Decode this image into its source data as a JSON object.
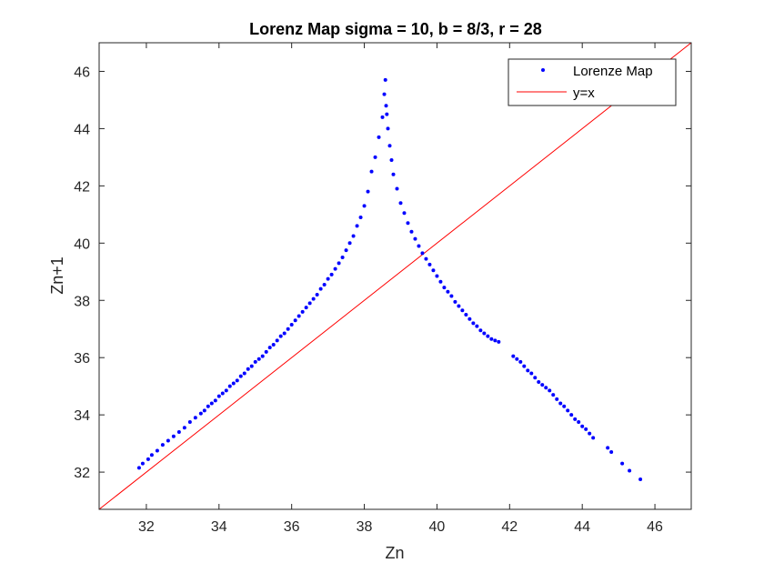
{
  "chart_data": {
    "type": "scatter",
    "title": "Lorenz Map sigma = 10, b = 8/3, r = 28",
    "xlabel": "Zn",
    "ylabel": "Zn+1",
    "xlim": [
      30.7,
      47.0
    ],
    "ylim": [
      30.7,
      47.0
    ],
    "xticks": [
      "32",
      "34",
      "36",
      "38",
      "40",
      "42",
      "44",
      "46"
    ],
    "yticks": [
      "32",
      "34",
      "36",
      "38",
      "40",
      "42",
      "44",
      "46"
    ],
    "grid": false,
    "legend_position": "top-right",
    "series": [
      {
        "name": "Lorenze Map",
        "color": "#0000ff",
        "marker": "dot",
        "x": [
          31.8,
          31.9,
          32.05,
          32.15,
          32.3,
          32.45,
          32.6,
          32.75,
          32.9,
          33.05,
          33.2,
          33.35,
          33.5,
          33.6,
          33.7,
          33.8,
          33.9,
          34.0,
          34.1,
          34.2,
          34.3,
          34.4,
          34.5,
          34.6,
          34.7,
          34.8,
          34.9,
          35.0,
          35.1,
          35.2,
          35.3,
          35.4,
          35.5,
          35.6,
          35.7,
          35.8,
          35.9,
          36.0,
          36.1,
          36.2,
          36.3,
          36.4,
          36.5,
          36.6,
          36.7,
          36.8,
          36.9,
          37.0,
          37.1,
          37.2,
          37.3,
          37.4,
          37.5,
          37.6,
          37.7,
          37.8,
          37.9,
          38.0,
          38.1,
          38.2,
          38.3,
          38.4,
          38.5,
          38.55,
          38.58,
          38.6,
          38.62,
          38.65,
          38.7,
          38.75,
          38.8,
          38.9,
          39.0,
          39.1,
          39.2,
          39.3,
          39.4,
          39.5,
          39.6,
          39.7,
          39.8,
          39.9,
          40.0,
          40.1,
          40.2,
          40.3,
          40.4,
          40.5,
          40.6,
          40.7,
          40.8,
          40.9,
          41.0,
          41.1,
          41.2,
          41.3,
          41.4,
          41.5,
          41.6,
          41.7,
          42.1,
          42.2,
          42.3,
          42.4,
          42.5,
          42.6,
          42.7,
          42.8,
          42.9,
          43.0,
          43.1,
          43.2,
          43.3,
          43.4,
          43.5,
          43.6,
          43.7,
          43.8,
          43.9,
          44.0,
          44.1,
          44.2,
          44.3,
          44.7,
          44.8,
          45.1,
          45.3,
          45.6
        ],
        "y": [
          32.15,
          32.3,
          32.45,
          32.6,
          32.75,
          32.95,
          33.1,
          33.25,
          33.4,
          33.55,
          33.75,
          33.9,
          34.05,
          34.15,
          34.3,
          34.4,
          34.5,
          34.65,
          34.75,
          34.85,
          35.0,
          35.1,
          35.2,
          35.35,
          35.45,
          35.6,
          35.7,
          35.85,
          35.95,
          36.05,
          36.2,
          36.35,
          36.45,
          36.6,
          36.75,
          36.85,
          37.0,
          37.15,
          37.3,
          37.45,
          37.6,
          37.75,
          37.9,
          38.05,
          38.2,
          38.4,
          38.55,
          38.75,
          38.9,
          39.1,
          39.3,
          39.5,
          39.75,
          40.0,
          40.25,
          40.6,
          40.9,
          41.3,
          41.8,
          42.5,
          43.0,
          43.7,
          44.4,
          45.2,
          45.7,
          44.8,
          44.5,
          44.0,
          43.4,
          42.9,
          42.4,
          41.9,
          41.4,
          41.05,
          40.7,
          40.4,
          40.15,
          39.9,
          39.65,
          39.45,
          39.25,
          39.05,
          38.85,
          38.65,
          38.45,
          38.3,
          38.15,
          37.95,
          37.8,
          37.65,
          37.5,
          37.35,
          37.2,
          37.1,
          36.95,
          36.85,
          36.75,
          36.65,
          36.6,
          36.55,
          36.05,
          35.95,
          35.85,
          35.7,
          35.55,
          35.45,
          35.3,
          35.15,
          35.05,
          34.95,
          34.85,
          34.7,
          34.55,
          34.4,
          34.3,
          34.15,
          34.0,
          33.85,
          33.75,
          33.6,
          33.5,
          33.35,
          33.2,
          32.85,
          32.7,
          32.3,
          32.05,
          31.75
        ]
      },
      {
        "name": "y=x",
        "color": "#ff0000",
        "marker": "line",
        "x": [
          30.7,
          47.0
        ],
        "y": [
          30.7,
          47.0
        ]
      }
    ]
  }
}
